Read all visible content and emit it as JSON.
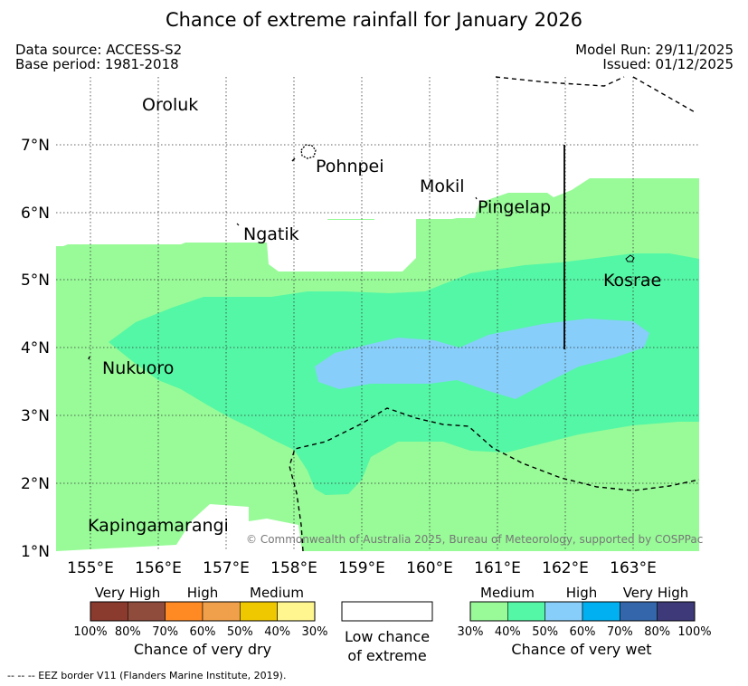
{
  "title": "Chance of extreme rainfall for January 2026",
  "meta": {
    "data_source": "Data source: ACCESS-S2",
    "base_period": "Base period: 1981-2018",
    "model_run": "Model Run: 29/11/2025",
    "issued": "Issued: 01/12/2025"
  },
  "map": {
    "lon_ticks": [
      "155°E",
      "156°E",
      "157°E",
      "158°E",
      "159°E",
      "160°E",
      "161°E",
      "162°E",
      "163°E"
    ],
    "lat_ticks": [
      "7°N",
      "6°N",
      "5°N",
      "4°N",
      "3°N",
      "2°N",
      "1°N"
    ],
    "places": {
      "oroluk": "Oroluk",
      "pohnpei": "Pohnpei",
      "mokil": "Mokil",
      "pingelap": "Pingelap",
      "ngatik": "Ngatik",
      "kosrae": "Kosrae",
      "nukuoro": "Nukuoro",
      "kapingamarangi": "Kapingamarangi"
    },
    "copyright": "© Commonwealth of Australia 2025, Bureau of Meteorology, supported by COSPPac"
  },
  "legend": {
    "dry": {
      "headers": [
        "Very High",
        "High",
        "Medium"
      ],
      "percents": [
        "100%",
        "80%",
        "70%",
        "60%",
        "50%",
        "40%",
        "30%"
      ],
      "colors": [
        "#8b3a2e",
        "#8f4b3b",
        "#ff8a24",
        "#f0a04a",
        "#f0c800",
        "#fff68f"
      ],
      "label": "Chance of very dry"
    },
    "neutral": {
      "label_line1": "Low chance",
      "label_line2": "of extreme"
    },
    "wet": {
      "headers": [
        "Medium",
        "High",
        "Very High"
      ],
      "percents": [
        "30%",
        "40%",
        "50%",
        "60%",
        "70%",
        "80%",
        "100%"
      ],
      "colors": [
        "#98fb98",
        "#54f7a5",
        "#87cefa",
        "#00b0f0",
        "#3366aa",
        "#3e3a7a"
      ],
      "label": "Chance of very wet"
    }
  },
  "footnote": "--  --  -- EEZ border V11 (Flanders Marine Institute, 2019)."
}
